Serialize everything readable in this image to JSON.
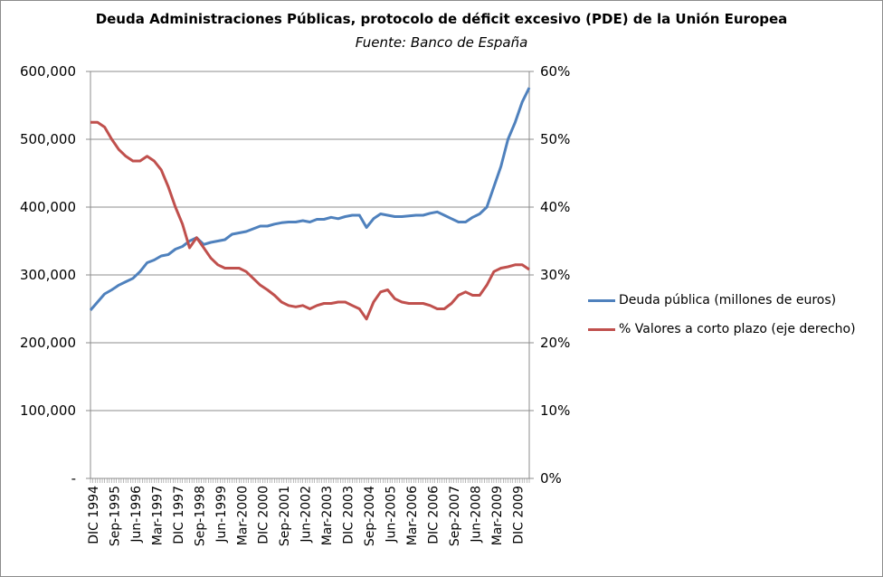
{
  "chart_data": {
    "type": "line",
    "title": "Deuda Administraciones Públicas, protocolo de déficit excesivo (PDE) de la Unión Europea",
    "subtitle": "Fuente: Banco de España",
    "x_tick_labels": [
      "DIC 1994",
      "Sep-1995",
      "Jun-1996",
      "Mar-1997",
      "DIC 1997",
      "Sep-1998",
      "Jun-1999",
      "Mar-2000",
      "DIC 2000",
      "Sep-2001",
      "Jun-2002",
      "Mar-2003",
      "DIC 2003",
      "Sep-2004",
      "Jun-2005",
      "Mar-2006",
      "DIC 2006",
      "Sep-2007",
      "Jun-2008",
      "Mar-2009",
      "DIC 2009"
    ],
    "x_range": [
      "1994-12",
      "2010-06"
    ],
    "y_left": {
      "min": 0,
      "max": 600000,
      "ticks": [
        "-",
        "100,000",
        "200,000",
        "300,000",
        "400,000",
        "500,000",
        "600,000"
      ]
    },
    "y_right": {
      "min": 0,
      "max": 60,
      "ticks": [
        "0%",
        "10%",
        "20%",
        "30%",
        "40%",
        "50%",
        "60%"
      ]
    },
    "grid": true,
    "legend_position": "right",
    "series": [
      {
        "name": "Deuda pública (millones de euros)",
        "axis": "left",
        "color": "#4f81bd",
        "points": [
          [
            "1994-12",
            248000
          ],
          [
            "1995-03",
            260000
          ],
          [
            "1995-06",
            272000
          ],
          [
            "1995-09",
            278000
          ],
          [
            "1995-12",
            285000
          ],
          [
            "1996-03",
            290000
          ],
          [
            "1996-06",
            295000
          ],
          [
            "1996-09",
            305000
          ],
          [
            "1996-12",
            318000
          ],
          [
            "1997-03",
            322000
          ],
          [
            "1997-06",
            328000
          ],
          [
            "1997-09",
            330000
          ],
          [
            "1997-12",
            338000
          ],
          [
            "1998-03",
            342000
          ],
          [
            "1998-06",
            350000
          ],
          [
            "1998-09",
            355000
          ],
          [
            "1998-12",
            345000
          ],
          [
            "1999-03",
            348000
          ],
          [
            "1999-06",
            350000
          ],
          [
            "1999-09",
            352000
          ],
          [
            "1999-12",
            360000
          ],
          [
            "2000-03",
            362000
          ],
          [
            "2000-06",
            364000
          ],
          [
            "2000-09",
            368000
          ],
          [
            "2000-12",
            372000
          ],
          [
            "2001-03",
            372000
          ],
          [
            "2001-06",
            375000
          ],
          [
            "2001-09",
            377000
          ],
          [
            "2001-12",
            378000
          ],
          [
            "2002-03",
            378000
          ],
          [
            "2002-06",
            380000
          ],
          [
            "2002-09",
            378000
          ],
          [
            "2002-12",
            382000
          ],
          [
            "2003-03",
            382000
          ],
          [
            "2003-06",
            385000
          ],
          [
            "2003-09",
            383000
          ],
          [
            "2003-12",
            386000
          ],
          [
            "2004-03",
            388000
          ],
          [
            "2004-06",
            388000
          ],
          [
            "2004-09",
            370000
          ],
          [
            "2004-12",
            383000
          ],
          [
            "2005-03",
            390000
          ],
          [
            "2005-06",
            388000
          ],
          [
            "2005-09",
            386000
          ],
          [
            "2005-12",
            386000
          ],
          [
            "2006-03",
            387000
          ],
          [
            "2006-06",
            388000
          ],
          [
            "2006-09",
            388000
          ],
          [
            "2006-12",
            391000
          ],
          [
            "2007-03",
            393000
          ],
          [
            "2007-06",
            388000
          ],
          [
            "2007-09",
            383000
          ],
          [
            "2007-12",
            378000
          ],
          [
            "2008-03",
            378000
          ],
          [
            "2008-06",
            385000
          ],
          [
            "2008-09",
            390000
          ],
          [
            "2008-12",
            400000
          ],
          [
            "2009-03",
            430000
          ],
          [
            "2009-06",
            460000
          ],
          [
            "2009-09",
            500000
          ],
          [
            "2009-12",
            525000
          ],
          [
            "2010-03",
            555000
          ],
          [
            "2010-06",
            576000
          ]
        ]
      },
      {
        "name": "% Valores a corto plazo (eje derecho)",
        "axis": "right",
        "color": "#c0504d",
        "points": [
          [
            "1994-12",
            52.5
          ],
          [
            "1995-03",
            52.5
          ],
          [
            "1995-06",
            51.8
          ],
          [
            "1995-09",
            50.0
          ],
          [
            "1995-12",
            48.5
          ],
          [
            "1996-03",
            47.5
          ],
          [
            "1996-06",
            46.8
          ],
          [
            "1996-09",
            46.8
          ],
          [
            "1996-12",
            47.5
          ],
          [
            "1997-03",
            46.8
          ],
          [
            "1997-06",
            45.5
          ],
          [
            "1997-09",
            43.0
          ],
          [
            "1997-12",
            40.0
          ],
          [
            "1998-03",
            37.5
          ],
          [
            "1998-06",
            34.0
          ],
          [
            "1998-09",
            35.5
          ],
          [
            "1998-12",
            34.0
          ],
          [
            "1999-03",
            32.5
          ],
          [
            "1999-06",
            31.5
          ],
          [
            "1999-09",
            31.0
          ],
          [
            "1999-12",
            31.0
          ],
          [
            "2000-03",
            31.0
          ],
          [
            "2000-06",
            30.5
          ],
          [
            "2000-09",
            29.5
          ],
          [
            "2000-12",
            28.5
          ],
          [
            "2001-03",
            27.8
          ],
          [
            "2001-06",
            27.0
          ],
          [
            "2001-09",
            26.0
          ],
          [
            "2001-12",
            25.5
          ],
          [
            "2002-03",
            25.3
          ],
          [
            "2002-06",
            25.5
          ],
          [
            "2002-09",
            25.0
          ],
          [
            "2002-12",
            25.5
          ],
          [
            "2003-03",
            25.8
          ],
          [
            "2003-06",
            25.8
          ],
          [
            "2003-09",
            26.0
          ],
          [
            "2003-12",
            26.0
          ],
          [
            "2004-03",
            25.5
          ],
          [
            "2004-06",
            25.0
          ],
          [
            "2004-09",
            23.5
          ],
          [
            "2004-12",
            26.0
          ],
          [
            "2005-03",
            27.5
          ],
          [
            "2005-06",
            27.8
          ],
          [
            "2005-09",
            26.5
          ],
          [
            "2005-12",
            26.0
          ],
          [
            "2006-03",
            25.8
          ],
          [
            "2006-06",
            25.8
          ],
          [
            "2006-09",
            25.8
          ],
          [
            "2006-12",
            25.5
          ],
          [
            "2007-03",
            25.0
          ],
          [
            "2007-06",
            25.0
          ],
          [
            "2007-09",
            25.8
          ],
          [
            "2007-12",
            27.0
          ],
          [
            "2008-03",
            27.5
          ],
          [
            "2008-06",
            27.0
          ],
          [
            "2008-09",
            27.0
          ],
          [
            "2008-12",
            28.5
          ],
          [
            "2009-03",
            30.5
          ],
          [
            "2009-06",
            31.0
          ],
          [
            "2009-09",
            31.2
          ],
          [
            "2009-12",
            31.5
          ],
          [
            "2010-03",
            31.5
          ],
          [
            "2010-06",
            30.8
          ]
        ]
      }
    ]
  }
}
